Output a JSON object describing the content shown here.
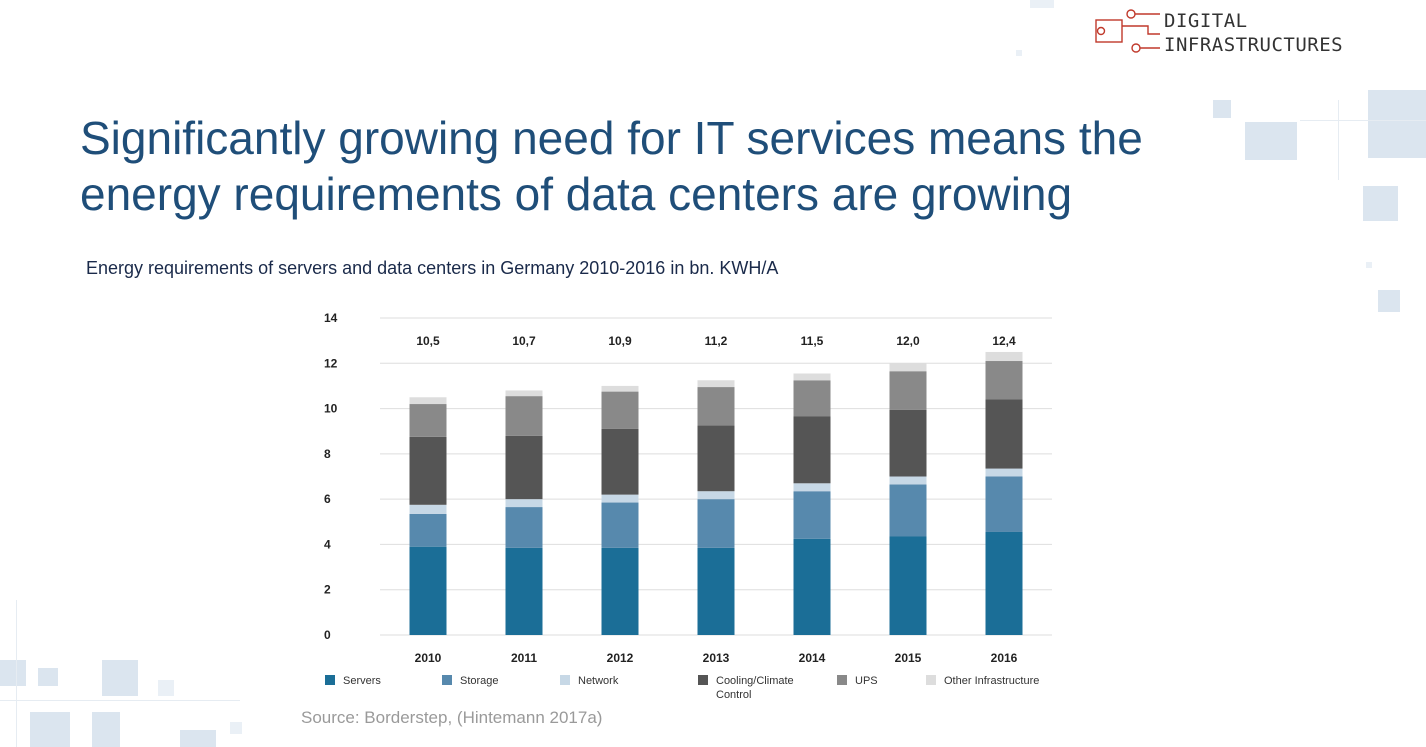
{
  "logo": {
    "line1": "DIGITAL",
    "line2": "INFRASTRUCTURES",
    "icon": "circuit-icon"
  },
  "title": {
    "line1": "Significantly growing need for IT services means the",
    "line2": "energy requirements of data centers are growing"
  },
  "subtitle": "Energy requirements of servers and data centers in Germany 2010-2016 in bn. KWH/A",
  "source": "Source: Borderstep, (Hintemann 2017a)",
  "colors": {
    "title": "#1f4e79",
    "accent": "#c0392b"
  },
  "chart_data": {
    "type": "bar",
    "stacked": true,
    "categories": [
      "2010",
      "2011",
      "2012",
      "2013",
      "2014",
      "2015",
      "2016"
    ],
    "totals": [
      "10,5",
      "10,7",
      "10,9",
      "11,2",
      "11,5",
      "12,0",
      "12,4"
    ],
    "series": [
      {
        "name": "Servers",
        "color": "#1b6e97",
        "values": [
          3.9,
          3.85,
          3.85,
          3.85,
          4.25,
          4.35,
          4.55
        ]
      },
      {
        "name": "Storage",
        "color": "#5789ad",
        "values": [
          1.45,
          1.8,
          2.0,
          2.15,
          2.1,
          2.3,
          2.45
        ]
      },
      {
        "name": "Network",
        "color": "#c7d8e6",
        "values": [
          0.4,
          0.35,
          0.35,
          0.35,
          0.35,
          0.35,
          0.35
        ]
      },
      {
        "name": "Cooling/Climate Control",
        "color": "#555555",
        "values": [
          3.0,
          2.8,
          2.9,
          2.9,
          2.95,
          2.95,
          3.05
        ]
      },
      {
        "name": "UPS",
        "color": "#898989",
        "values": [
          1.45,
          1.75,
          1.65,
          1.7,
          1.6,
          1.7,
          1.7
        ]
      },
      {
        "name": "Other Infrastructure",
        "color": "#dddddd",
        "values": [
          0.3,
          0.25,
          0.25,
          0.3,
          0.3,
          0.35,
          0.4
        ]
      }
    ],
    "ylim": [
      0,
      14
    ],
    "yticks": [
      0,
      2,
      4,
      6,
      8,
      10,
      12,
      14
    ],
    "grid": true,
    "legend_position": "bottom"
  }
}
